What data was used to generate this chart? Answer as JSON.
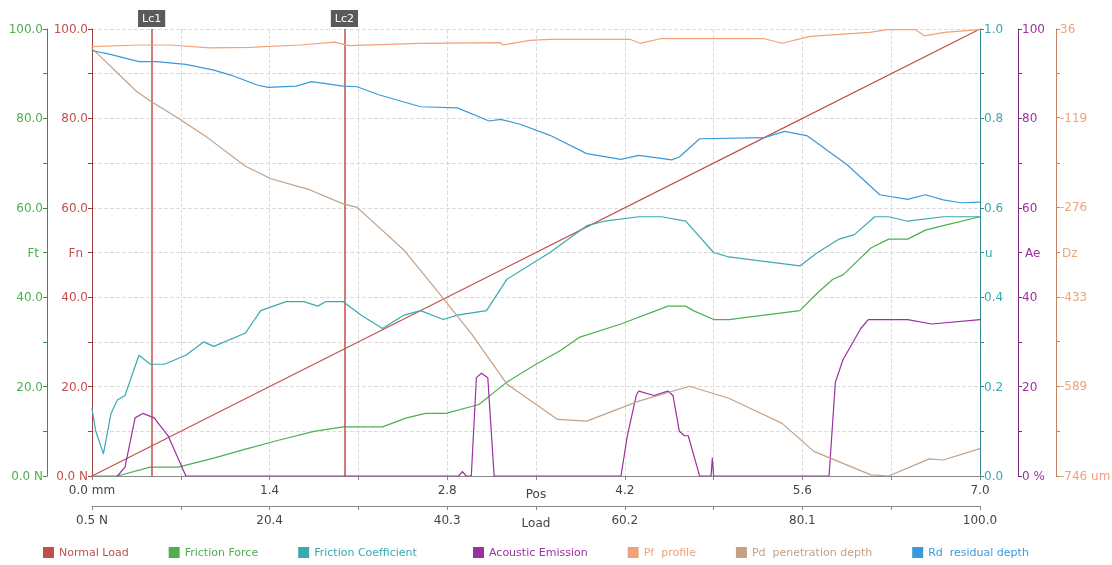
{
  "chart_data": [
    {
      "type": "line",
      "xlabel": "Pos",
      "xlim": [
        0,
        7
      ],
      "xticks": [
        {
          "value": 0,
          "label": "0.0 mm"
        },
        {
          "value": 0.7,
          "label": null
        },
        1.4,
        {
          "value": 2.1,
          "label": null
        },
        2.8,
        {
          "value": 3.5,
          "label": null
        },
        4.2,
        {
          "value": 4.9,
          "label": null
        },
        5.6,
        {
          "value": 6.3,
          "label": null
        },
        {
          "value": 7,
          "label": "7.0"
        }
      ],
      "x2label": "Load",
      "x2lim": [
        0.5,
        100
      ],
      "x2ticks": [
        {
          "value": 0.5,
          "label": "0.5 N"
        },
        {
          "value": 10.45,
          "label": null
        },
        20.4,
        {
          "value": 30.35,
          "label": null
        },
        40.3,
        {
          "value": 50.25,
          "label": null
        },
        60.2,
        {
          "value": 70.15,
          "label": null
        },
        80.1,
        {
          "value": 90.05,
          "label": null
        },
        {
          "value": 100,
          "label": "100.0"
        }
      ],
      "ylabel": "Ft",
      "ylim": [
        0,
        100
      ],
      "yticks": [
        {
          "value": 0,
          "label": "0.0 N"
        },
        {
          "value": 10,
          "label": null
        },
        {
          "value": 20,
          "label": "20.0"
        },
        {
          "value": 30,
          "label": null
        },
        {
          "value": 40,
          "label": "40.0"
        },
        {
          "value": 50,
          "label": null
        },
        {
          "value": 60,
          "label": "60.0"
        },
        {
          "value": 70,
          "label": null
        },
        {
          "value": 80,
          "label": "80.0"
        },
        {
          "value": 90,
          "label": null
        },
        {
          "value": 100,
          "label": "100.0"
        }
      ],
      "y2label": "Fn",
      "y2lim": [
        0,
        100
      ],
      "y2ticks": [
        {
          "value": 0,
          "label": "0.0 N"
        },
        {
          "value": 10,
          "label": null
        },
        {
          "value": 20,
          "label": "20.0"
        },
        {
          "value": 30,
          "label": null
        },
        {
          "value": 40,
          "label": "40.0"
        },
        {
          "value": 50,
          "label": null
        },
        {
          "value": 60,
          "label": "60.0"
        },
        {
          "value": 70,
          "label": null
        },
        {
          "value": 80,
          "label": "80.0"
        },
        {
          "value": 90,
          "label": null
        },
        {
          "value": 100,
          "label": "100.0"
        }
      ],
      "y3label": "u",
      "y3lim": [
        0,
        1
      ],
      "y3ticks": [
        {
          "value": 0,
          "label": "0.0"
        },
        {
          "value": 0.1,
          "label": null
        },
        0.2,
        {
          "value": 0.3,
          "label": null
        },
        0.4,
        {
          "value": 0.5,
          "label": null
        },
        0.6,
        {
          "value": 0.7,
          "label": null
        },
        0.8,
        {
          "value": 0.9,
          "label": null
        },
        {
          "value": 1,
          "label": "1.0"
        }
      ],
      "grid": true,
      "legend": "bottom",
      "marker": "none",
      "line_style": "solid",
      "ref_lines": [
        {
          "axis": "x",
          "value": 0.47,
          "label": "Lc1",
          "color": "#c0504d"
        },
        {
          "axis": "x",
          "value": 1.99,
          "label": "Lc2",
          "color": "#c0504d"
        }
      ],
      "series": [
        {
          "name": "Normal Load",
          "color": "#c0504d",
          "axis": "y2",
          "x": [
            0,
            7
          ],
          "values": [
            0,
            100
          ]
        },
        {
          "name": "Friction Force",
          "color": "#4caf50",
          "x": [
            0,
            0.2,
            0.46,
            0.68,
            0.96,
            1.21,
            1.47,
            1.75,
            1.98,
            2.12,
            2.29,
            2.48,
            2.63,
            2.79,
            3.05,
            3.27,
            3.5,
            3.69,
            3.84,
            4.17,
            4.54,
            4.68,
            4.74,
            4.9,
            5.02,
            5.3,
            5.58,
            5.72,
            5.84,
            5.92,
            6.14,
            6.28,
            6.43,
            6.57,
            6.71,
            7
          ],
          "values": [
            0,
            0,
            2,
            2,
            4,
            6,
            8,
            10,
            11,
            11,
            11,
            13,
            14,
            14,
            16,
            21,
            25,
            28,
            31,
            34,
            38,
            38,
            37,
            35,
            35,
            36,
            37,
            41,
            44,
            45,
            51,
            53,
            53,
            55,
            56,
            58
          ]
        },
        {
          "name": "Friction Coefficient",
          "color": "#3aa9b0",
          "axis": "y3",
          "x": [
            0,
            0.03,
            0.09,
            0.15,
            0.2,
            0.26,
            0.37,
            0.46,
            0.57,
            0.74,
            0.88,
            0.96,
            1.21,
            1.33,
            1.53,
            1.67,
            1.78,
            1.84,
            1.98,
            2.12,
            2.29,
            2.46,
            2.59,
            2.77,
            2.88,
            3.11,
            3.27,
            3.61,
            3.9,
            4.04,
            4.31,
            4.49,
            4.68,
            4.9,
            5.02,
            5.3,
            5.58,
            5.72,
            5.89,
            6.01,
            6.17,
            6.28,
            6.43,
            6.71,
            7
          ],
          "values": [
            0.15,
            0.1,
            0.05,
            0.14,
            0.17,
            0.18,
            0.27,
            0.25,
            0.25,
            0.27,
            0.3,
            0.29,
            0.32,
            0.37,
            0.39,
            0.39,
            0.38,
            0.39,
            0.39,
            0.36,
            0.33,
            0.36,
            0.37,
            0.35,
            0.36,
            0.37,
            0.44,
            0.5,
            0.56,
            0.57,
            0.58,
            0.58,
            0.57,
            0.5,
            0.49,
            0.48,
            0.47,
            0.5,
            0.53,
            0.54,
            0.58,
            0.58,
            0.57,
            0.58,
            0.58
          ]
        }
      ]
    },
    {
      "type": "line",
      "xlim": [
        0,
        7
      ],
      "tick_labels": "y",
      "ylabel": "Ae",
      "ylim": [
        0,
        100
      ],
      "yticks": [
        {
          "value": 0,
          "label": "0 %"
        },
        {
          "value": 10,
          "label": null
        },
        20,
        {
          "value": 30,
          "label": null
        },
        40,
        {
          "value": 50,
          "label": null
        },
        60,
        {
          "value": 70,
          "label": null
        },
        80,
        {
          "value": 90,
          "label": null
        },
        100
      ],
      "y2label": "Dz",
      "y2lim": [
        -746,
        36
      ],
      "y2ticks": [
        36,
        {
          "value": -42,
          "label": null
        },
        -119,
        {
          "value": -198,
          "label": null
        },
        -276,
        {
          "value": -355,
          "label": null
        },
        -433,
        {
          "value": -511,
          "label": null
        },
        -589,
        {
          "value": -668,
          "label": null
        },
        {
          "value": -746,
          "label": "-746 um"
        }
      ],
      "legend": "bottom",
      "marker": "none",
      "line_style": "solid",
      "series": [
        {
          "name": "Acoustic Emission",
          "color": "#9b30a0",
          "x": [
            0.2,
            0.26,
            0.34,
            0.4,
            0.49,
            0.6,
            0.74,
            2.89,
            2.92,
            2.95,
            2.99,
            3.03,
            3.07,
            3.12,
            3.17,
            4.17,
            4.22,
            4.29,
            4.31,
            4.43,
            4.54,
            4.58,
            4.63,
            4.67,
            4.7,
            4.77,
            4.79,
            4.88,
            4.89,
            4.9,
            5.81,
            5.86,
            5.92,
            6.06,
            6.12,
            6.43,
            6.62,
            7
          ],
          "values": [
            0,
            2,
            13,
            14,
            13,
            9,
            0,
            0,
            1,
            0,
            0,
            22,
            23,
            22,
            0,
            0,
            9,
            18,
            19,
            18,
            19,
            18,
            10,
            9,
            9,
            2,
            0,
            0,
            4,
            0,
            0,
            21,
            26,
            33,
            35,
            35,
            34,
            35
          ]
        },
        {
          "name": "Pf  profile",
          "color": "#f0a27a",
          "axis": "y2",
          "x": [
            0,
            0.38,
            0.61,
            0.93,
            1.25,
            1.64,
            1.91,
            2.03,
            2.58,
            3.22,
            3.24,
            3.45,
            3.61,
            4.24,
            4.32,
            4.48,
            5.3,
            5.44,
            5.66,
            6.13,
            6.27,
            6.49,
            6.56,
            6.72,
            7
          ],
          "values": [
            5,
            8,
            8,
            3,
            4,
            8,
            13,
            7,
            11,
            12,
            8,
            16,
            18,
            18,
            11,
            19,
            19,
            11,
            23,
            30,
            35,
            35,
            24,
            30,
            35
          ]
        },
        {
          "name": "Pd  penetration depth",
          "color": "#c4a084",
          "axis": "y2",
          "x": [
            0,
            0.35,
            0.46,
            0.68,
            0.91,
            1.21,
            1.41,
            1.7,
            1.98,
            2.09,
            2.46,
            2.71,
            2.99,
            3.27,
            3.67,
            3.9,
            4.31,
            4.71,
            5.02,
            5.44,
            5.69,
            6.14,
            6.28,
            6.6,
            6.71,
            7
          ],
          "values": [
            2,
            -73,
            -90,
            -120,
            -154,
            -204,
            -226,
            -244,
            -270,
            -276,
            -351,
            -419,
            -497,
            -585,
            -647,
            -650,
            -615,
            -589,
            -610,
            -654,
            -703,
            -744,
            -746,
            -716,
            -718,
            -698
          ]
        },
        {
          "name": "Rd  residual depth",
          "color": "#3a9ad9",
          "axis": "y2",
          "x": [
            0,
            0.12,
            0.37,
            0.51,
            0.74,
            0.96,
            1.1,
            1.3,
            1.39,
            1.61,
            1.73,
            1.98,
            2.09,
            2.26,
            2.59,
            2.88,
            3.13,
            3.22,
            3.38,
            3.61,
            3.9,
            4.17,
            4.31,
            4.57,
            4.63,
            4.79,
            5.3,
            5.46,
            5.64,
            5.95,
            6.21,
            6.43,
            6.57,
            6.71,
            6.85,
            7
          ],
          "values": [
            -2,
            -7,
            -21,
            -21,
            -26,
            -36,
            -45,
            -62,
            -66,
            -64,
            -56,
            -64,
            -65,
            -79,
            -100,
            -102,
            -125,
            -122,
            -131,
            -150,
            -182,
            -192,
            -185,
            -193,
            -188,
            -156,
            -154,
            -143,
            -151,
            -201,
            -254,
            -262,
            -254,
            -263,
            -268,
            -267
          ]
        }
      ]
    }
  ]
}
